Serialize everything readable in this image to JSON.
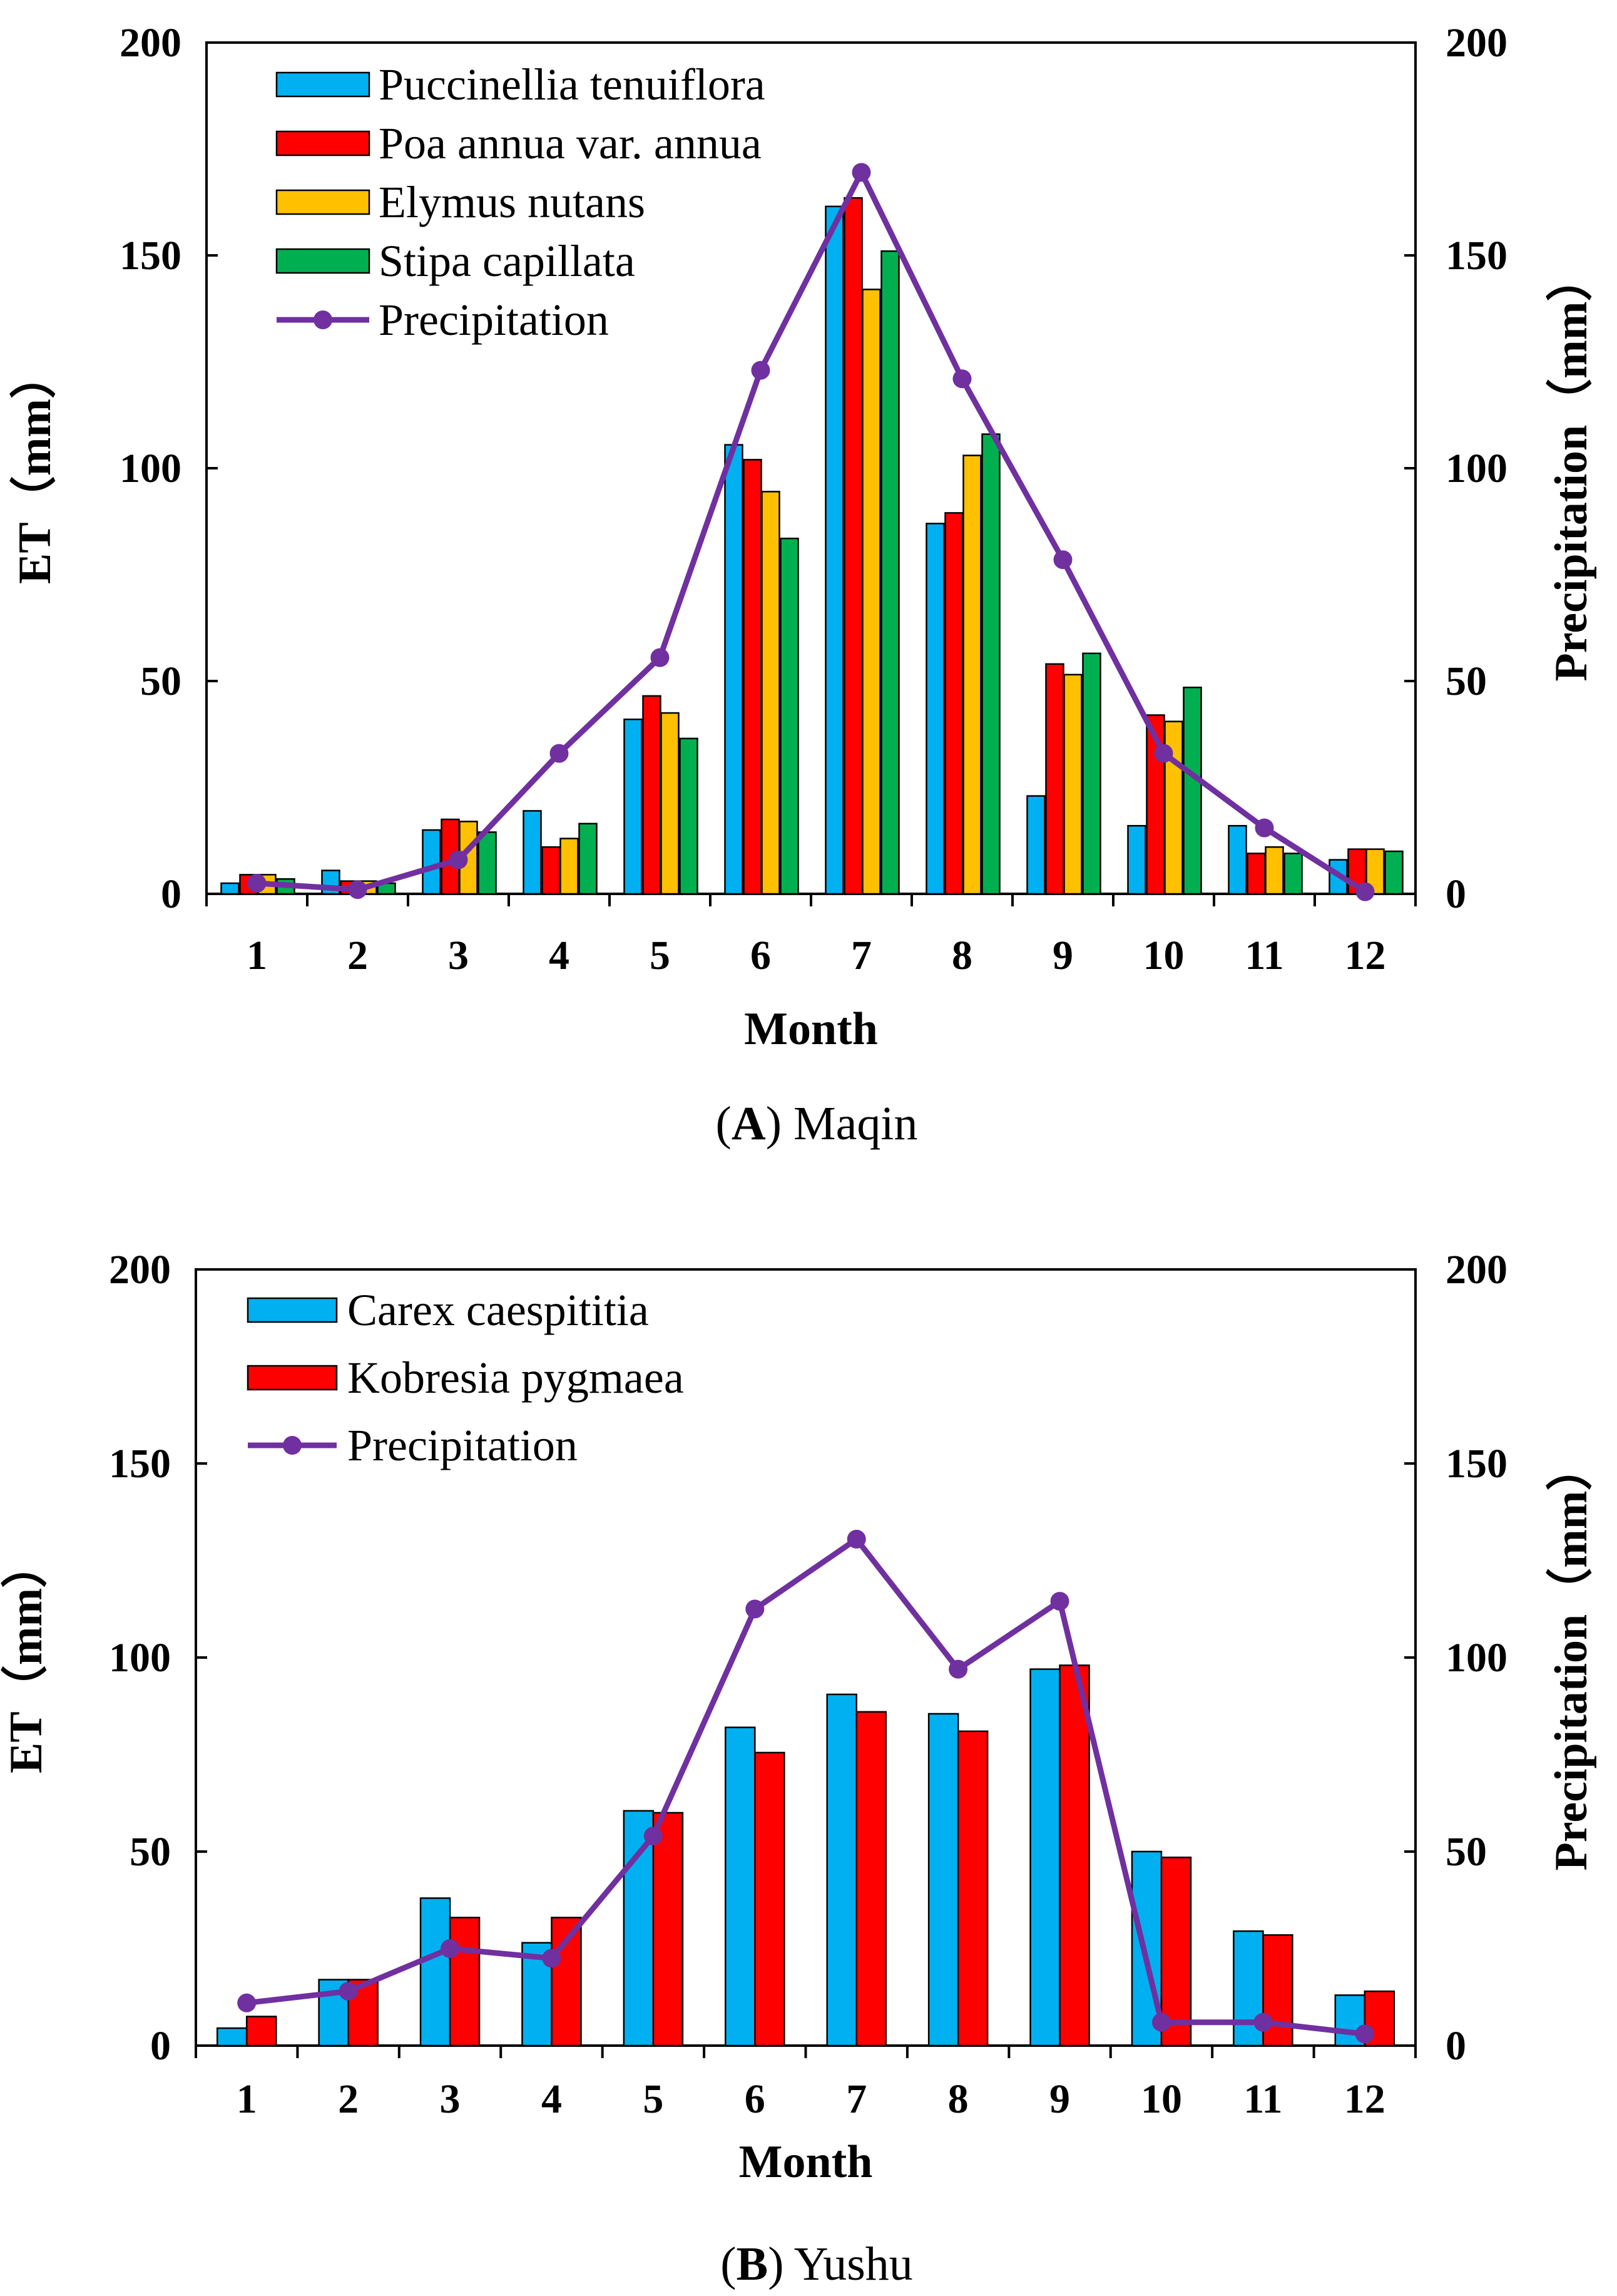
{
  "chart_data": [
    {
      "type": "bar",
      "panel_label": "A",
      "site": "Maqin",
      "categories": [
        "1",
        "2",
        "3",
        "4",
        "5",
        "6",
        "7",
        "8",
        "9",
        "10",
        "11",
        "12"
      ],
      "xlabel": "Month",
      "ylabel": "ET（mm）",
      "y2label": "Precipitation（mm）",
      "ylim": [
        0,
        200
      ],
      "y2lim": [
        0,
        200
      ],
      "yticks": [
        "0",
        "50",
        "100",
        "150",
        "200"
      ],
      "series": [
        {
          "name": "Puccinellia tenuiflora",
          "kind": "bar",
          "color": "#00b0f0",
          "values": [
            2.5,
            5.5,
            15,
            19.5,
            41,
            105.5,
            161.5,
            87,
            23,
            16,
            16,
            8
          ]
        },
        {
          "name": "Poa annua var. annua",
          "kind": "bar",
          "color": "#ff0000",
          "values": [
            4.5,
            3,
            17.5,
            11,
            46.5,
            102,
            163.5,
            89.5,
            54,
            42,
            9.5,
            10.5
          ]
        },
        {
          "name": "Elymus nutans",
          "kind": "bar",
          "color": "#ffc000",
          "values": [
            4.5,
            3,
            17,
            13,
            42.5,
            94.5,
            142,
            103,
            51.5,
            40.5,
            11,
            10.5
          ]
        },
        {
          "name": "Stipa capillata",
          "kind": "bar",
          "color": "#00b050",
          "values": [
            3.5,
            2.5,
            14.5,
            16.5,
            36.5,
            83.5,
            151,
            108,
            56.5,
            48.5,
            9.5,
            10
          ]
        },
        {
          "name": "Precipitation",
          "kind": "line",
          "axis": "right",
          "color": "#7030a0",
          "values": [
            2.5,
            1,
            8,
            33,
            55.5,
            123,
            169.5,
            121,
            78.5,
            33,
            15.5,
            0.5
          ]
        }
      ],
      "caption_label": "A",
      "caption_text": " Maqin"
    },
    {
      "type": "bar",
      "panel_label": "B",
      "site": "Yushu",
      "categories": [
        "1",
        "2",
        "3",
        "4",
        "5",
        "6",
        "7",
        "8",
        "9",
        "10",
        "11",
        "12"
      ],
      "xlabel": "Month",
      "ylabel": "ET（mm）",
      "y2label": "Precipitation（mm）",
      "ylim": [
        0,
        200
      ],
      "y2lim": [
        0,
        200
      ],
      "yticks": [
        "0",
        "50",
        "100",
        "150",
        "200"
      ],
      "series": [
        {
          "name": "Carex caespititia",
          "kind": "bar",
          "color": "#00b0f0",
          "values": [
            4.5,
            17,
            38,
            26.5,
            60.5,
            82,
            90.5,
            85.5,
            97,
            50,
            29.5,
            13
          ]
        },
        {
          "name": "Kobresia pygmaea",
          "kind": "bar",
          "color": "#ff0000",
          "values": [
            7.5,
            17,
            33,
            33,
            60,
            75.5,
            86,
            81,
            98,
            48.5,
            28.5,
            14
          ]
        },
        {
          "name": "Precipitation",
          "kind": "line",
          "axis": "right",
          "color": "#7030a0",
          "values": [
            11,
            14,
            25,
            22.5,
            54,
            112.5,
            130.5,
            97,
            114.5,
            6,
            6,
            3
          ]
        }
      ],
      "caption_label": "B",
      "caption_text": " Yushu"
    }
  ]
}
